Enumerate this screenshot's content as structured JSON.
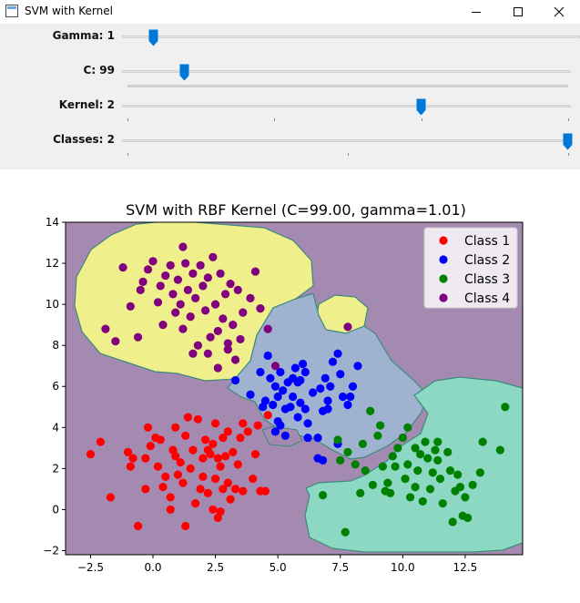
{
  "window": {
    "title": "SVM with Kernel"
  },
  "sliders": [
    {
      "label": "Gamma: 1",
      "fraction": 0.04
    },
    {
      "label": "C: 99",
      "fraction": 0.11
    },
    {
      "label": "Kernel: 2",
      "fraction": 0.66
    },
    {
      "label": "Classes: 2",
      "fraction": 1.0
    }
  ],
  "colors": {
    "accent": "#0078d7",
    "region_purple": "#a48ab0",
    "region_yellow": "#eff08c",
    "region_blue": "#9fb3d1",
    "region_teal": "#8dd8c3",
    "boundary": "#3d8a7c"
  },
  "chart_data": {
    "type": "scatter",
    "title": "SVM with RBF Kernel (C=99.00, gamma=1.01)",
    "xlim": [
      -3.5,
      14.8
    ],
    "ylim": [
      -2.2,
      14
    ],
    "xticks": [
      -2.5,
      0.0,
      2.5,
      5.0,
      7.5,
      10.0,
      12.5
    ],
    "yticks": [
      -2,
      0,
      2,
      4,
      6,
      8,
      10,
      12,
      14
    ],
    "xtick_labels": [
      "−2.5",
      "0.0",
      "2.5",
      "5.0",
      "7.5",
      "10.0",
      "12.5"
    ],
    "ytick_labels": [
      "−2",
      "0",
      "2",
      "4",
      "6",
      "8",
      "10",
      "12",
      "14"
    ],
    "grid": false,
    "legend_position": "top-right",
    "series": [
      {
        "name": "Class 1",
        "color": "#ff0000",
        "points": [
          [
            -2.5,
            2.7
          ],
          [
            -2.1,
            3.3
          ],
          [
            -1.7,
            0.6
          ],
          [
            -1.0,
            2.8
          ],
          [
            -0.9,
            2.1
          ],
          [
            -0.8,
            2.5
          ],
          [
            -0.6,
            -0.8
          ],
          [
            -0.3,
            1.0
          ],
          [
            -0.3,
            2.5
          ],
          [
            -0.2,
            4.0
          ],
          [
            -0.1,
            3.1
          ],
          [
            0.1,
            3.5
          ],
          [
            0.2,
            2.1
          ],
          [
            0.3,
            3.4
          ],
          [
            0.4,
            1.1
          ],
          [
            0.5,
            1.6
          ],
          [
            0.7,
            0.0
          ],
          [
            0.7,
            0.6
          ],
          [
            0.8,
            2.9
          ],
          [
            0.9,
            2.6
          ],
          [
            0.9,
            4.0
          ],
          [
            1.0,
            1.7
          ],
          [
            1.1,
            2.3
          ],
          [
            1.2,
            1.3
          ],
          [
            1.3,
            -0.8
          ],
          [
            1.3,
            3.6
          ],
          [
            1.4,
            4.5
          ],
          [
            1.5,
            2.0
          ],
          [
            1.6,
            2.9
          ],
          [
            1.7,
            0.3
          ],
          [
            1.8,
            4.4
          ],
          [
            1.9,
            1.0
          ],
          [
            2.0,
            2.5
          ],
          [
            2.0,
            1.6
          ],
          [
            2.1,
            3.4
          ],
          [
            2.2,
            0.8
          ],
          [
            2.2,
            2.9
          ],
          [
            2.3,
            2.7
          ],
          [
            2.4,
            3.2
          ],
          [
            2.4,
            0.0
          ],
          [
            2.5,
            1.5
          ],
          [
            2.5,
            4.2
          ],
          [
            2.6,
            2.5
          ],
          [
            2.6,
            -0.4
          ],
          [
            2.7,
            -0.1
          ],
          [
            2.7,
            2.1
          ],
          [
            2.8,
            3.5
          ],
          [
            2.8,
            1.0
          ],
          [
            2.9,
            2.6
          ],
          [
            3.0,
            3.8
          ],
          [
            3.0,
            1.3
          ],
          [
            3.1,
            0.5
          ],
          [
            3.2,
            2.8
          ],
          [
            3.3,
            1.0
          ],
          [
            3.4,
            2.2
          ],
          [
            3.5,
            3.5
          ],
          [
            3.6,
            4.2
          ],
          [
            3.6,
            0.9
          ],
          [
            3.8,
            3.8
          ],
          [
            4.0,
            1.5
          ],
          [
            4.1,
            2.7
          ],
          [
            4.2,
            4.1
          ],
          [
            4.3,
            0.9
          ],
          [
            4.5,
            0.9
          ],
          [
            4.6,
            4.6
          ]
        ]
      },
      {
        "name": "Class 2",
        "color": "#0000ff",
        "points": [
          [
            3.3,
            6.3
          ],
          [
            3.9,
            5.6
          ],
          [
            4.3,
            6.7
          ],
          [
            4.4,
            5.0
          ],
          [
            4.5,
            5.3
          ],
          [
            4.6,
            7.5
          ],
          [
            4.7,
            6.4
          ],
          [
            4.8,
            5.1
          ],
          [
            4.9,
            6.0
          ],
          [
            5.0,
            5.5
          ],
          [
            5.0,
            4.3
          ],
          [
            5.1,
            6.7
          ],
          [
            5.2,
            5.8
          ],
          [
            5.3,
            4.9
          ],
          [
            5.4,
            6.2
          ],
          [
            5.5,
            5.0
          ],
          [
            5.6,
            5.5
          ],
          [
            5.7,
            6.9
          ],
          [
            5.8,
            4.5
          ],
          [
            5.9,
            5.2
          ],
          [
            5.9,
            6.3
          ],
          [
            6.0,
            7.1
          ],
          [
            6.1,
            4.9
          ],
          [
            6.2,
            4.2
          ],
          [
            6.4,
            5.7
          ],
          [
            6.6,
            3.5
          ],
          [
            6.7,
            5.9
          ],
          [
            6.8,
            4.8
          ],
          [
            6.9,
            6.4
          ],
          [
            7.0,
            5.3
          ],
          [
            7.1,
            6.0
          ],
          [
            7.2,
            7.2
          ],
          [
            7.4,
            7.6
          ],
          [
            7.5,
            6.6
          ],
          [
            7.6,
            5.5
          ],
          [
            7.8,
            5.1
          ],
          [
            7.9,
            5.5
          ],
          [
            8.0,
            6.0
          ],
          [
            8.2,
            7.0
          ],
          [
            5.1,
            4.1
          ],
          [
            5.3,
            3.6
          ],
          [
            6.6,
            2.5
          ],
          [
            6.8,
            2.4
          ],
          [
            7.4,
            3.2
          ],
          [
            4.9,
            3.8
          ],
          [
            6.2,
            3.5
          ],
          [
            7.0,
            4.9
          ],
          [
            5.6,
            6.4
          ],
          [
            6.1,
            6.7
          ],
          [
            5.8,
            6.2
          ]
        ]
      },
      {
        "name": "Class 3",
        "color": "#008000",
        "points": [
          [
            6.8,
            0.7
          ],
          [
            7.4,
            3.4
          ],
          [
            7.5,
            2.4
          ],
          [
            7.7,
            -1.1
          ],
          [
            7.8,
            2.8
          ],
          [
            8.1,
            2.2
          ],
          [
            8.3,
            0.8
          ],
          [
            8.4,
            3.2
          ],
          [
            8.5,
            1.9
          ],
          [
            8.7,
            4.8
          ],
          [
            8.8,
            1.2
          ],
          [
            9.0,
            3.6
          ],
          [
            9.1,
            4.1
          ],
          [
            9.2,
            2.1
          ],
          [
            9.4,
            1.3
          ],
          [
            9.5,
            0.8
          ],
          [
            9.6,
            2.6
          ],
          [
            9.8,
            3.0
          ],
          [
            10.0,
            3.5
          ],
          [
            10.1,
            1.5
          ],
          [
            10.2,
            2.2
          ],
          [
            10.3,
            0.6
          ],
          [
            10.5,
            3.0
          ],
          [
            10.6,
            1.9
          ],
          [
            10.7,
            2.7
          ],
          [
            10.8,
            0.4
          ],
          [
            10.9,
            3.3
          ],
          [
            11.0,
            2.5
          ],
          [
            11.1,
            1.0
          ],
          [
            11.2,
            1.8
          ],
          [
            11.3,
            2.9
          ],
          [
            11.4,
            3.3
          ],
          [
            11.5,
            1.5
          ],
          [
            11.6,
            0.3
          ],
          [
            11.8,
            2.8
          ],
          [
            11.9,
            1.9
          ],
          [
            12.0,
            -0.6
          ],
          [
            12.1,
            0.9
          ],
          [
            12.2,
            1.7
          ],
          [
            12.3,
            1.1
          ],
          [
            12.4,
            -0.3
          ],
          [
            12.5,
            0.6
          ],
          [
            12.8,
            1.2
          ],
          [
            13.1,
            1.8
          ],
          [
            13.2,
            3.3
          ],
          [
            13.9,
            2.9
          ],
          [
            14.1,
            5.0
          ],
          [
            10.2,
            4.0
          ],
          [
            9.7,
            2.1
          ],
          [
            12.6,
            -0.4
          ],
          [
            11.4,
            2.4
          ],
          [
            10.5,
            1.1
          ],
          [
            9.3,
            0.9
          ]
        ]
      },
      {
        "name": "Class 4",
        "color": "#800080",
        "points": [
          [
            -1.9,
            8.8
          ],
          [
            -1.5,
            8.2
          ],
          [
            -1.2,
            11.8
          ],
          [
            -0.9,
            9.9
          ],
          [
            -0.6,
            8.4
          ],
          [
            -0.5,
            10.7
          ],
          [
            -0.4,
            11.1
          ],
          [
            -0.2,
            11.7
          ],
          [
            0.0,
            12.1
          ],
          [
            0.2,
            10.1
          ],
          [
            0.3,
            10.9
          ],
          [
            0.4,
            9.0
          ],
          [
            0.5,
            11.4
          ],
          [
            0.7,
            11.9
          ],
          [
            0.8,
            10.5
          ],
          [
            0.9,
            9.6
          ],
          [
            1.0,
            11.2
          ],
          [
            1.1,
            10.0
          ],
          [
            1.2,
            8.8
          ],
          [
            1.3,
            12.0
          ],
          [
            1.4,
            10.7
          ],
          [
            1.5,
            9.4
          ],
          [
            1.6,
            11.5
          ],
          [
            1.7,
            10.3
          ],
          [
            1.8,
            8.0
          ],
          [
            1.9,
            11.9
          ],
          [
            2.0,
            10.9
          ],
          [
            2.1,
            9.7
          ],
          [
            2.2,
            11.3
          ],
          [
            2.3,
            8.4
          ],
          [
            2.4,
            12.3
          ],
          [
            2.5,
            10.0
          ],
          [
            2.6,
            8.7
          ],
          [
            2.7,
            11.5
          ],
          [
            2.8,
            9.3
          ],
          [
            2.9,
            10.5
          ],
          [
            3.0,
            7.8
          ],
          [
            3.1,
            11.0
          ],
          [
            3.2,
            9.0
          ],
          [
            3.4,
            10.7
          ],
          [
            3.5,
            8.3
          ],
          [
            3.6,
            9.6
          ],
          [
            3.9,
            10.3
          ],
          [
            4.1,
            11.6
          ],
          [
            4.3,
            9.8
          ],
          [
            4.6,
            8.8
          ],
          [
            4.9,
            7.0
          ],
          [
            7.8,
            8.9
          ],
          [
            1.2,
            12.8
          ],
          [
            2.2,
            7.6
          ],
          [
            1.6,
            7.6
          ],
          [
            2.6,
            6.9
          ],
          [
            3.3,
            7.3
          ],
          [
            3.0,
            8.1
          ]
        ]
      }
    ]
  }
}
